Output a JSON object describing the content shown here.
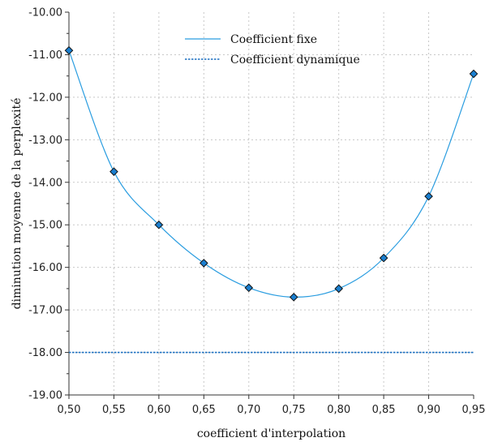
{
  "chart_data": {
    "type": "line",
    "title": "",
    "xlabel": "coefficient d'interpolation",
    "ylabel": "diminution moyenne de la perplexité",
    "xlim": [
      0.5,
      0.95
    ],
    "ylim": [
      -19.0,
      -10.0
    ],
    "x_ticks": [
      "0,50",
      "0,55",
      "0,60",
      "0,65",
      "0,70",
      "0,75",
      "0,80",
      "0,85",
      "0,90",
      "0,95"
    ],
    "y_ticks": [
      "-10.00",
      "-11.00",
      "-12.00",
      "-13.00",
      "-14.00",
      "-15.00",
      "-16.00",
      "-17.00",
      "-18.00",
      "-19.00"
    ],
    "grid": true,
    "legend_position": "top-center",
    "series": [
      {
        "name": "Coefficient fixe",
        "style": "solid",
        "marker": "diamond",
        "color": "#2a9de0",
        "marker_fill": "#1a7fd0",
        "x": [
          0.5,
          0.55,
          0.6,
          0.65,
          0.7,
          0.75,
          0.8,
          0.85,
          0.9,
          0.95
        ],
        "y": [
          -10.9,
          -13.75,
          -15.0,
          -15.9,
          -16.48,
          -16.7,
          -16.5,
          -15.78,
          -14.33,
          -11.45
        ]
      },
      {
        "name": "Coefficient dynamique",
        "style": "dotted",
        "color": "#1a6fc0",
        "x": [
          0.5,
          0.95
        ],
        "y": [
          -18.0,
          -18.0
        ]
      }
    ]
  }
}
